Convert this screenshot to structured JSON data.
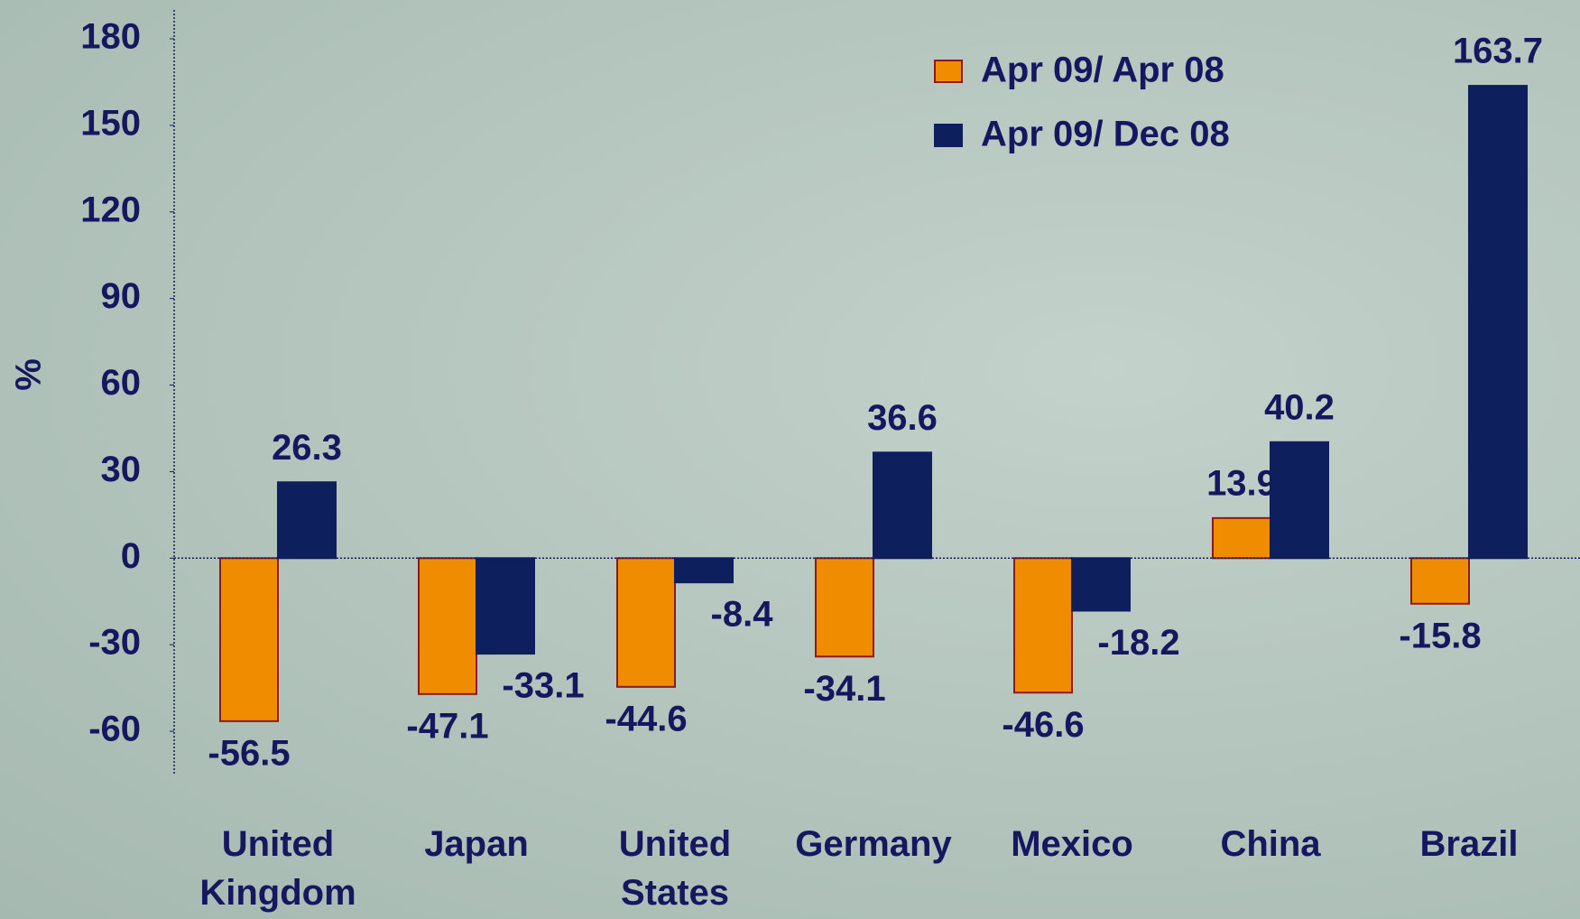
{
  "chart_data": {
    "type": "bar",
    "y_label": "%",
    "categories": [
      "United Kingdom",
      "Japan",
      "United States",
      "Germany",
      "Mexico",
      "China",
      "Brazil"
    ],
    "series": [
      {
        "name": "Apr 09/ Apr 08",
        "color": "#ef8c00",
        "values": [
          -56.5,
          -47.1,
          -44.6,
          -34.1,
          -46.6,
          13.9,
          -15.8
        ]
      },
      {
        "name": "Apr 09/ Dec 08",
        "color": "#0d1f5c",
        "values": [
          26.3,
          -33.1,
          -8.4,
          36.6,
          -18.2,
          40.2,
          163.7
        ]
      }
    ],
    "ylim": [
      -75,
      190
    ],
    "yticks": [
      -60,
      -30,
      0,
      30,
      60,
      90,
      120,
      150,
      180
    ],
    "legend": "top-right"
  }
}
